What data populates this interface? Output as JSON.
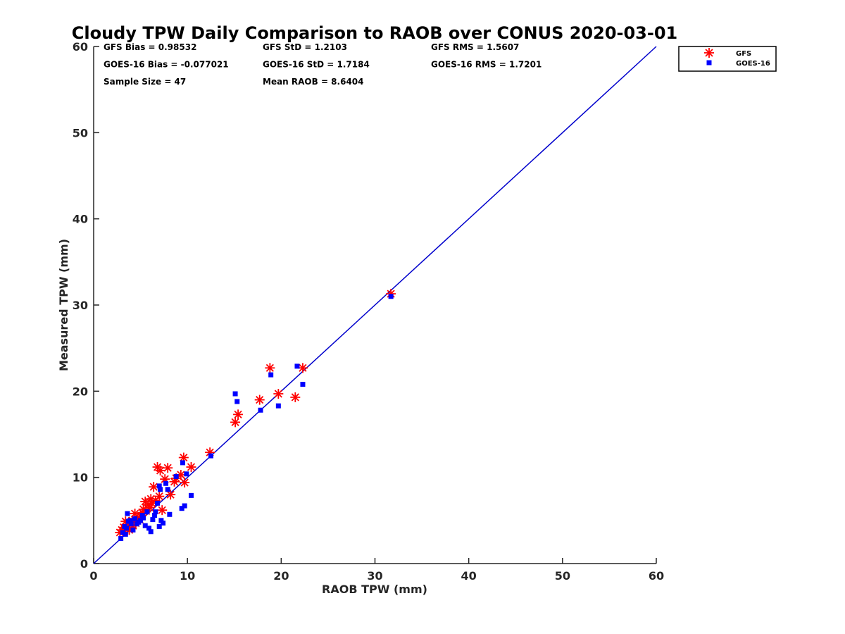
{
  "chart_data": {
    "type": "scatter",
    "title": "Cloudy TPW Daily Comparison to RAOB over CONUS 2020-03-01",
    "xlabel": "RAOB TPW (mm)",
    "ylabel": "Measured TPW (mm)",
    "xlim": [
      0,
      60
    ],
    "ylim": [
      0,
      60
    ],
    "xticks": [
      "0",
      "10",
      "20",
      "30",
      "40",
      "50",
      "60"
    ],
    "yticks": [
      "0",
      "10",
      "20",
      "30",
      "40",
      "50",
      "60"
    ],
    "grid": false,
    "legend": "top-right outside",
    "reference_line": {
      "x": [
        0,
        60
      ],
      "y": [
        0,
        60
      ],
      "color": "#0000cc"
    },
    "stats": [
      [
        "GFS Bias = 0.98532",
        "GFS StD = 1.2103",
        "GFS RMS = 1.5607"
      ],
      [
        "GOES-16 Bias = -0.077021",
        "GOES-16 StD = 1.7184",
        "GOES-16 RMS = 1.7201"
      ],
      [
        "Sample Size = 47",
        "Mean RAOB = 8.6404",
        ""
      ]
    ],
    "series": [
      {
        "name": "GFS",
        "marker": "asterisk",
        "color": "#ff0000",
        "points": [
          [
            2.8,
            3.6
          ],
          [
            3.0,
            3.9
          ],
          [
            3.2,
            4.2
          ],
          [
            3.4,
            4.9
          ],
          [
            3.6,
            4.1
          ],
          [
            3.9,
            4.5
          ],
          [
            4.1,
            5.0
          ],
          [
            4.4,
            5.8
          ],
          [
            4.7,
            5.2
          ],
          [
            5.0,
            5.5
          ],
          [
            5.3,
            6.3
          ],
          [
            5.5,
            7.2
          ],
          [
            5.8,
            6.8
          ],
          [
            6.1,
            7.5
          ],
          [
            6.4,
            8.9
          ],
          [
            6.8,
            11.2
          ],
          [
            7.1,
            10.8
          ],
          [
            7.3,
            6.2
          ],
          [
            7.6,
            9.8
          ],
          [
            7.9,
            11.1
          ],
          [
            8.2,
            8.0
          ],
          [
            8.8,
            9.9
          ],
          [
            9.3,
            10.3
          ],
          [
            9.6,
            12.3
          ],
          [
            9.7,
            9.4
          ],
          [
            10.4,
            11.2
          ],
          [
            12.4,
            12.9
          ],
          [
            15.1,
            16.4
          ],
          [
            15.4,
            17.3
          ],
          [
            17.7,
            19.0
          ],
          [
            18.8,
            22.7
          ],
          [
            19.7,
            19.7
          ],
          [
            21.5,
            19.3
          ],
          [
            22.3,
            22.7
          ],
          [
            31.7,
            31.3
          ],
          [
            3.8,
            3.9
          ],
          [
            4.5,
            4.7
          ],
          [
            5.6,
            6.1
          ],
          [
            6.2,
            7.0
          ],
          [
            4.9,
            5.1
          ],
          [
            3.3,
            3.8
          ],
          [
            6.6,
            7.3
          ],
          [
            7.0,
            7.8
          ],
          [
            5.2,
            5.9
          ],
          [
            4.2,
            4.4
          ],
          [
            6.0,
            6.5
          ],
          [
            8.6,
            9.5
          ]
        ]
      },
      {
        "name": "GOES-16",
        "marker": "square",
        "color": "#0000ff",
        "points": [
          [
            2.9,
            2.9
          ],
          [
            3.1,
            3.6
          ],
          [
            3.3,
            4.3
          ],
          [
            3.5,
            4.1
          ],
          [
            3.6,
            5.8
          ],
          [
            3.9,
            5.0
          ],
          [
            4.2,
            3.9
          ],
          [
            4.4,
            5.2
          ],
          [
            4.6,
            4.6
          ],
          [
            5.0,
            5.0
          ],
          [
            5.3,
            5.3
          ],
          [
            5.5,
            4.4
          ],
          [
            5.7,
            6.0
          ],
          [
            5.9,
            4.1
          ],
          [
            6.1,
            3.7
          ],
          [
            6.3,
            5.1
          ],
          [
            6.6,
            6.0
          ],
          [
            7.0,
            4.3
          ],
          [
            7.1,
            8.6
          ],
          [
            7.2,
            5.0
          ],
          [
            7.4,
            4.7
          ],
          [
            7.7,
            9.3
          ],
          [
            7.9,
            8.6
          ],
          [
            8.1,
            5.7
          ],
          [
            8.8,
            10.1
          ],
          [
            9.4,
            6.4
          ],
          [
            9.5,
            11.7
          ],
          [
            9.7,
            6.7
          ],
          [
            9.9,
            10.4
          ],
          [
            10.4,
            7.9
          ],
          [
            12.5,
            12.5
          ],
          [
            15.1,
            19.7
          ],
          [
            15.3,
            18.8
          ],
          [
            17.8,
            17.8
          ],
          [
            18.9,
            21.9
          ],
          [
            19.7,
            18.3
          ],
          [
            21.7,
            22.9
          ],
          [
            22.3,
            20.8
          ],
          [
            31.7,
            31.0
          ],
          [
            4.0,
            4.6
          ],
          [
            6.8,
            7.0
          ],
          [
            7.0,
            9.0
          ],
          [
            5.2,
            5.6
          ],
          [
            3.7,
            4.9
          ],
          [
            4.8,
            4.8
          ],
          [
            3.4,
            3.4
          ],
          [
            6.5,
            5.6
          ]
        ]
      }
    ]
  }
}
